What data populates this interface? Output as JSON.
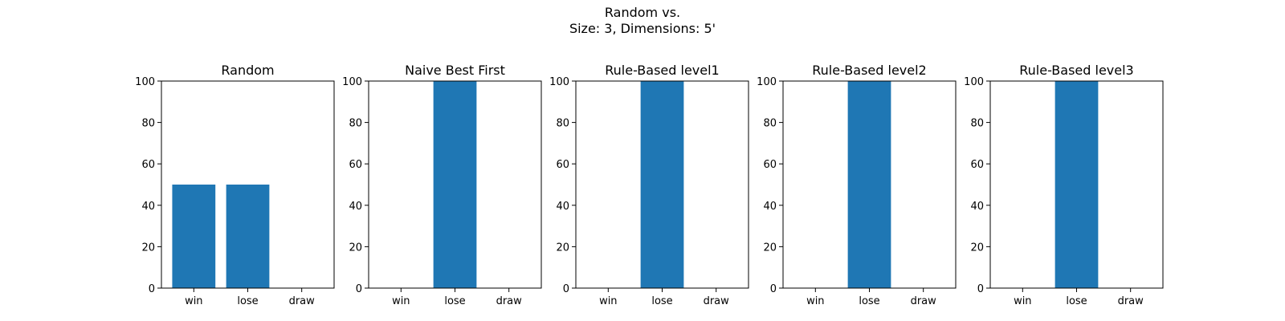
{
  "figure": {
    "suptitle_line1": "Random vs.",
    "suptitle_line2": "Size: 3, Dimensions: 5'"
  },
  "chart_data": [
    {
      "type": "bar",
      "title": "Random",
      "categories": [
        "win",
        "lose",
        "draw"
      ],
      "values": [
        50,
        50,
        0
      ],
      "ylim": [
        0,
        100
      ],
      "yticks": [
        0,
        20,
        40,
        60,
        80,
        100
      ],
      "xlabel": "",
      "ylabel": "",
      "grid": false,
      "color": "#1f77b4"
    },
    {
      "type": "bar",
      "title": "Naive Best First",
      "categories": [
        "win",
        "lose",
        "draw"
      ],
      "values": [
        0,
        100,
        0
      ],
      "ylim": [
        0,
        100
      ],
      "yticks": [
        0,
        20,
        40,
        60,
        80,
        100
      ],
      "xlabel": "",
      "ylabel": "",
      "grid": false,
      "color": "#1f77b4"
    },
    {
      "type": "bar",
      "title": "Rule-Based level1",
      "categories": [
        "win",
        "lose",
        "draw"
      ],
      "values": [
        0,
        100,
        0
      ],
      "ylim": [
        0,
        100
      ],
      "yticks": [
        0,
        20,
        40,
        60,
        80,
        100
      ],
      "xlabel": "",
      "ylabel": "",
      "grid": false,
      "color": "#1f77b4"
    },
    {
      "type": "bar",
      "title": "Rule-Based level2",
      "categories": [
        "win",
        "lose",
        "draw"
      ],
      "values": [
        0,
        100,
        0
      ],
      "ylim": [
        0,
        100
      ],
      "yticks": [
        0,
        20,
        40,
        60,
        80,
        100
      ],
      "xlabel": "",
      "ylabel": "",
      "grid": false,
      "color": "#1f77b4"
    },
    {
      "type": "bar",
      "title": "Rule-Based level3",
      "categories": [
        "win",
        "lose",
        "draw"
      ],
      "values": [
        0,
        100,
        0
      ],
      "ylim": [
        0,
        100
      ],
      "yticks": [
        0,
        20,
        40,
        60,
        80,
        100
      ],
      "xlabel": "",
      "ylabel": "",
      "grid": false,
      "color": "#1f77b4"
    }
  ]
}
